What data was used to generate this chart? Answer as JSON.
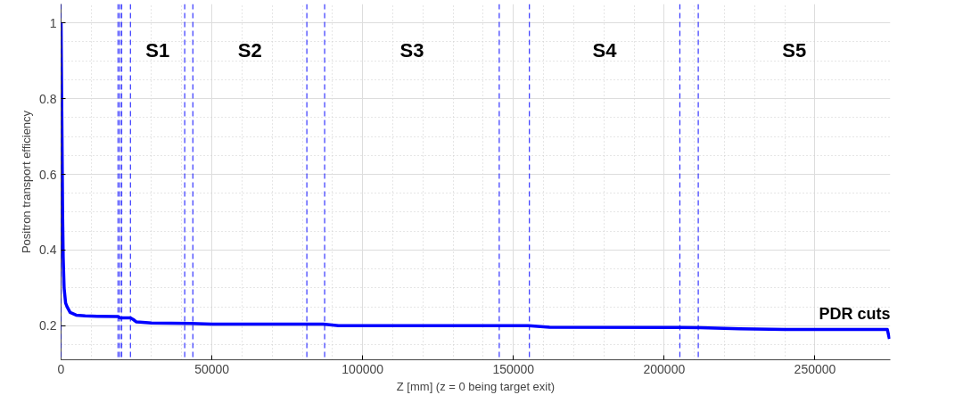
{
  "chart_data": {
    "type": "line",
    "xlabel": "Z [mm] (z = 0 being target exit)",
    "ylabel": "Positron transport efficiency",
    "x": [
      0,
      100,
      200,
      300,
      500,
      700,
      1000,
      1500,
      2000,
      3000,
      5000,
      8000,
      12000,
      19000,
      19500,
      23000,
      24000,
      25000,
      30000,
      43000,
      50000,
      87000,
      92000,
      155000,
      162000,
      212000,
      225000,
      240000,
      274000,
      274700
    ],
    "series": [
      {
        "color": "#0000ff",
        "values": [
          1.0,
          0.9,
          0.8,
          0.7,
          0.5,
          0.38,
          0.3,
          0.26,
          0.25,
          0.235,
          0.228,
          0.226,
          0.225,
          0.224,
          0.221,
          0.221,
          0.216,
          0.21,
          0.207,
          0.206,
          0.204,
          0.204,
          0.2,
          0.2,
          0.196,
          0.195,
          0.192,
          0.19,
          0.19,
          0.165
        ]
      }
    ],
    "xlim": [
      0,
      275000
    ],
    "ylim": [
      0.11,
      1.05
    ],
    "xticks": [
      0,
      50000,
      100000,
      150000,
      200000,
      250000
    ],
    "yticks": [
      0.2,
      0.4,
      0.6,
      0.8,
      1
    ],
    "grid": true,
    "line_style": "solid",
    "ref_lines": [
      {
        "axis": "x",
        "value": 0,
        "color": "#0000ff",
        "line_style": "dashed"
      },
      {
        "axis": "x",
        "value": 18900,
        "color": "#0000ff",
        "line_style": "dashed"
      },
      {
        "axis": "x",
        "value": 19500,
        "color": "#0000ff",
        "line_style": "dashed"
      },
      {
        "axis": "x",
        "value": 20100,
        "color": "#0000ff",
        "line_style": "dashed"
      },
      {
        "axis": "x",
        "value": 23000,
        "color": "#0000ff",
        "line_style": "dashed"
      },
      {
        "axis": "x",
        "value": 41000,
        "color": "#0000ff",
        "line_style": "dashed"
      },
      {
        "axis": "x",
        "value": 43700,
        "color": "#0000ff",
        "line_style": "dashed"
      },
      {
        "axis": "x",
        "value": 81500,
        "color": "#0000ff",
        "line_style": "dashed"
      },
      {
        "axis": "x",
        "value": 87400,
        "color": "#0000ff",
        "line_style": "dashed"
      },
      {
        "axis": "x",
        "value": 145300,
        "color": "#0000ff",
        "line_style": "dashed"
      },
      {
        "axis": "x",
        "value": 155300,
        "color": "#0000ff",
        "line_style": "dashed"
      },
      {
        "axis": "x",
        "value": 205200,
        "color": "#0000ff",
        "line_style": "dashed"
      },
      {
        "axis": "x",
        "value": 211300,
        "color": "#0000ff",
        "line_style": "dashed"
      }
    ],
    "annotations": [
      "S1",
      "S2",
      "S3",
      "S4",
      "S5",
      "PDR cuts"
    ]
  }
}
